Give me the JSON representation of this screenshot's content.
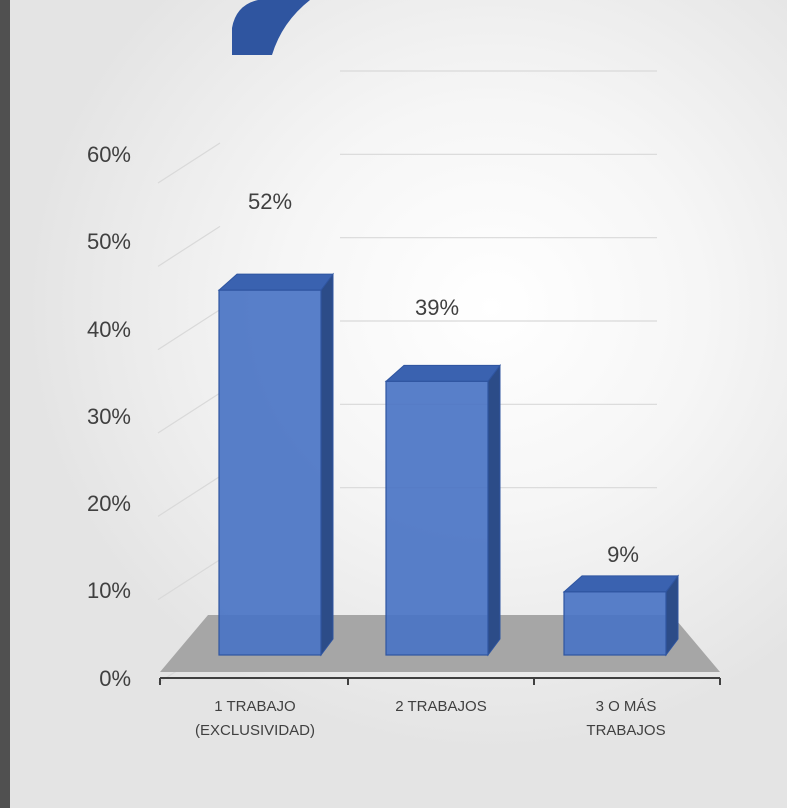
{
  "chart_data": {
    "type": "bar",
    "style": "3d-column",
    "categories": [
      [
        "1 TRABAJO",
        "(EXCLUSIVIDAD)"
      ],
      [
        "2 TRABAJOS"
      ],
      [
        "3 O MÁS",
        "TRABAJOS"
      ]
    ],
    "values": [
      52,
      39,
      9
    ],
    "data_labels": [
      "52%",
      "39%",
      "9%"
    ],
    "y_ticks": [
      "0%",
      "10%",
      "20%",
      "30%",
      "40%",
      "50%",
      "60%"
    ],
    "ylim": [
      0,
      60
    ],
    "grid": true,
    "title": "",
    "xlabel": "",
    "ylabel": "",
    "colors": {
      "bar_front": "#4a74c4",
      "bar_side": "#2c4c88",
      "bar_top": "#3a62b0",
      "bar_edge": "#2f55a0",
      "floor": "#a6a6a6",
      "grid": "#d9d9d9",
      "decor": "#2f55a0"
    }
  }
}
